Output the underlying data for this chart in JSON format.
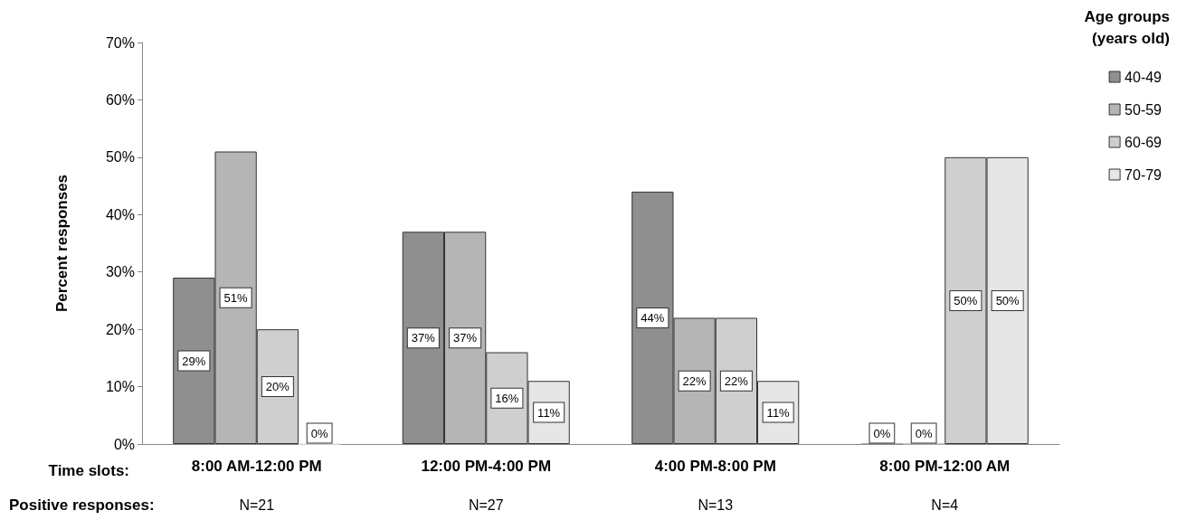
{
  "chart_data": {
    "type": "bar",
    "ylabel": "Percent responses",
    "legend_title": "Age groups\n(years old)",
    "categories": [
      "8:00 AM-12:00 PM",
      "12:00 PM-4:00 PM",
      "4:00 PM-8:00 PM",
      "8:00 PM-12:00 AM"
    ],
    "series": [
      {
        "name": "40-49",
        "color": "#8f8f8f",
        "values": [
          29,
          37,
          44,
          0
        ],
        "value_labels": [
          "29%",
          "37%",
          "44%",
          "0%"
        ]
      },
      {
        "name": "50-59",
        "color": "#b5b5b5",
        "values": [
          51,
          37,
          22,
          0
        ],
        "value_labels": [
          "51%",
          "37%",
          "22%",
          "0%"
        ]
      },
      {
        "name": "60-69",
        "color": "#cfcfcf",
        "values": [
          20,
          16,
          22,
          50
        ],
        "value_labels": [
          "20%",
          "16%",
          "22%",
          "50%"
        ]
      },
      {
        "name": "70-79",
        "color": "#e6e6e6",
        "values": [
          0,
          11,
          11,
          50
        ],
        "value_labels": [
          "0%",
          "11%",
          "11%",
          "50%"
        ]
      }
    ],
    "ylim": [
      0,
      70
    ],
    "yticks": [
      {
        "value": 0,
        "label": "0%"
      },
      {
        "value": 10,
        "label": "10%"
      },
      {
        "value": 20,
        "label": "20%"
      },
      {
        "value": 30,
        "label": "30%"
      },
      {
        "value": 40,
        "label": "40%"
      },
      {
        "value": 50,
        "label": "50%"
      },
      {
        "value": 60,
        "label": "60%"
      },
      {
        "value": 70,
        "label": "70%"
      }
    ],
    "grid": false,
    "legend": "top right",
    "annotations": [
      "Time slots:",
      "Positive responses:",
      "N=21",
      "N=27",
      "N=13",
      "N=4"
    ]
  }
}
